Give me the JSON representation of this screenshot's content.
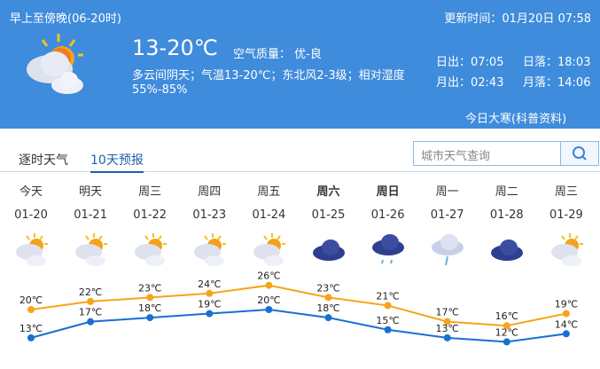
{
  "header": {
    "period": "早上至傍晚(06-20时)",
    "update_time": "更新时间：01月20日 07:58",
    "temp": "13-20℃",
    "air_quality": "空气质量： 优-良",
    "desc": "多云间阴天；气温13-20℃；东北风2-3级；相对湿度",
    "humidity": "55%-85%",
    "sunrise": "日出：07:05",
    "sunset": "日落：18:03",
    "moonrise": "月出：02:43",
    "moonset": "月落：14:06",
    "solar_term": "今日大寒(科普资料)",
    "icon": "partly-cloudy-icon"
  },
  "tabs": [
    {
      "label": "逐时天气"
    },
    {
      "label": "10天预报",
      "active": true
    }
  ],
  "search": {
    "placeholder": "城市天气查询"
  },
  "days": [
    {
      "day": "今天",
      "date": "01-20",
      "icon": "partly-cloudy",
      "high": "20℃",
      "low": "13℃"
    },
    {
      "day": "明天",
      "date": "01-21",
      "icon": "partly-cloudy",
      "high": "22℃",
      "low": "17℃"
    },
    {
      "day": "周三",
      "date": "01-22",
      "icon": "partly-cloudy",
      "high": "23℃",
      "low": "18℃"
    },
    {
      "day": "周四",
      "date": "01-23",
      "icon": "partly-cloudy",
      "high": "24℃",
      "low": "19℃"
    },
    {
      "day": "周五",
      "date": "01-24",
      "icon": "partly-cloudy",
      "high": "26℃",
      "low": "20℃"
    },
    {
      "day": "周六",
      "date": "01-25",
      "icon": "overcast",
      "high": "23℃",
      "low": "18℃",
      "bold": true
    },
    {
      "day": "周日",
      "date": "01-26",
      "icon": "rain",
      "high": "21℃",
      "low": "15℃",
      "bold": true
    },
    {
      "day": "周一",
      "date": "01-27",
      "icon": "drizzle",
      "high": "17℃",
      "low": "13℃"
    },
    {
      "day": "周二",
      "date": "01-28",
      "icon": "overcast",
      "high": "16℃",
      "low": "12℃"
    },
    {
      "day": "周三",
      "date": "01-29",
      "icon": "partly-cloudy",
      "high": "19℃",
      "low": "14℃"
    }
  ],
  "chart_data": {
    "type": "line",
    "categories": [
      "01-20",
      "01-21",
      "01-22",
      "01-23",
      "01-24",
      "01-25",
      "01-26",
      "01-27",
      "01-28",
      "01-29"
    ],
    "series": [
      {
        "values": [
          20,
          22,
          23,
          24,
          26,
          23,
          21,
          17,
          16,
          19
        ],
        "color": "#f6a41a"
      },
      {
        "values": [
          13,
          17,
          18,
          19,
          20,
          18,
          15,
          13,
          12,
          14
        ],
        "color": "#1a6fd2"
      }
    ],
    "unit": "℃"
  }
}
